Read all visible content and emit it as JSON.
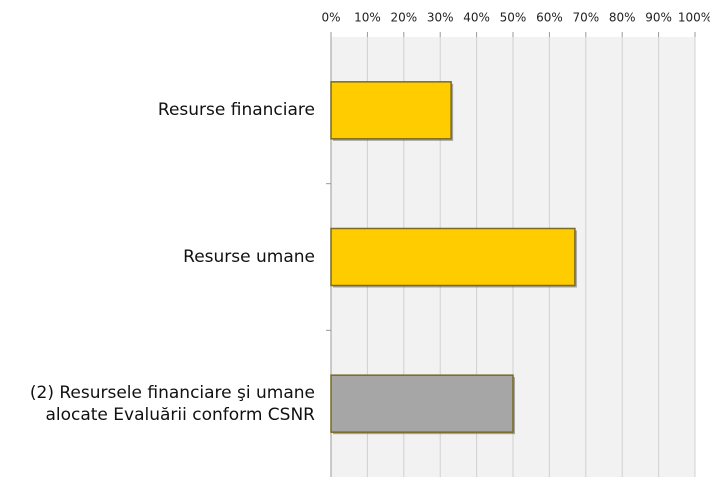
{
  "chart_data": {
    "type": "bar",
    "orientation": "horizontal",
    "categories": [
      "Resurse financiare",
      "Resurse umane",
      "(2) Resursele financiare şi umane\nalocate Evaluării conform CSNR"
    ],
    "values": [
      33,
      67,
      50
    ],
    "colors": [
      "#ffcc00",
      "#ffcc00",
      "#a6a6a6"
    ],
    "xlim": [
      0,
      100
    ],
    "xticks": [
      {
        "value": 0,
        "label": "0%"
      },
      {
        "value": 10,
        "label": "10%"
      },
      {
        "value": 20,
        "label": "20%"
      },
      {
        "value": 30,
        "label": "30%"
      },
      {
        "value": 40,
        "label": "40%"
      },
      {
        "value": 50,
        "label": "50%"
      },
      {
        "value": 60,
        "label": "60%"
      },
      {
        "value": 70,
        "label": "70%"
      },
      {
        "value": 80,
        "label": "80%"
      },
      {
        "value": 90,
        "label": "90%"
      },
      {
        "value": 100,
        "label": "100%"
      }
    ],
    "grid": true
  }
}
